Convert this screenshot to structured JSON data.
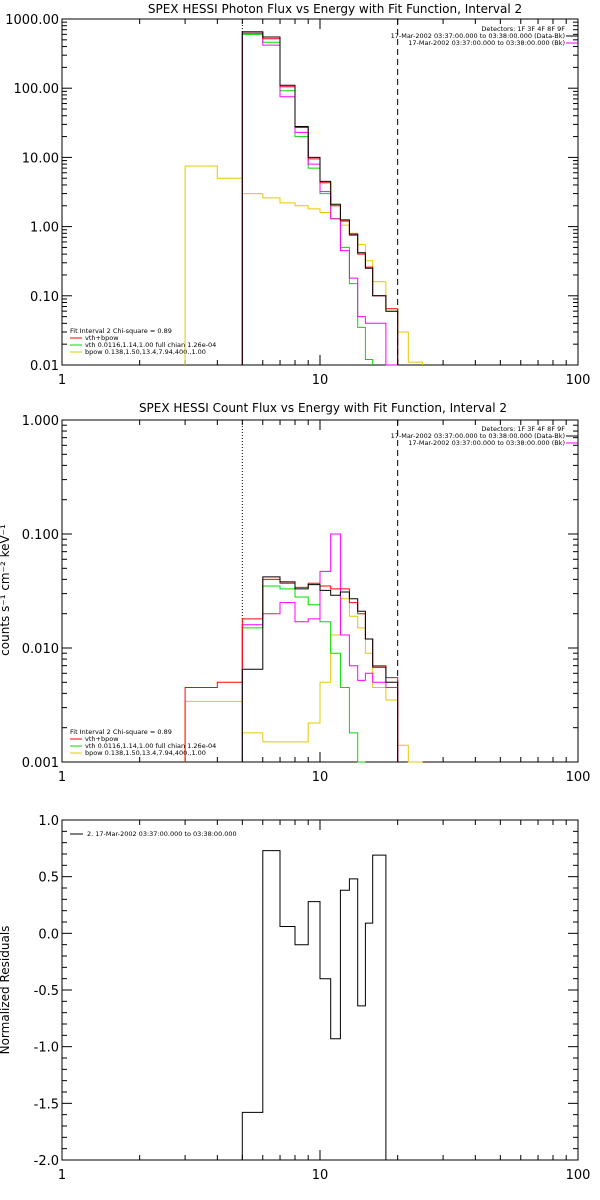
{
  "colors": {
    "data": "#000000",
    "total": "#ff0000",
    "vth": "#00dd00",
    "bpow": "#e6c800",
    "background": "#ff00ff",
    "frame": "#000000",
    "page": "#ffffff"
  },
  "chart_data": [
    {
      "type": "line",
      "title": "SPEX HESSI Photon Flux vs Energy with Fit Function, Interval 2",
      "xscale": "log",
      "yscale": "log",
      "xlim": [
        1,
        100
      ],
      "ylim": [
        0.01,
        1000
      ],
      "xticks": [
        "1",
        "10",
        "100"
      ],
      "yticks": [
        "1000.00",
        "100.00",
        "10.00",
        "1.00",
        "0.10",
        "0.01"
      ],
      "grid": false,
      "legend_top_right": {
        "line1": "Detectors: 1F 3F 4F 8F 9F",
        "line2": "17-Mar-2002 03:37:00.000 to 03:38:00.000 (Data-Bk)",
        "line3": "17-Mar-2002 03:37:00.000 to 03:38:00.000 (Bk)"
      },
      "legend_bottom_left": {
        "line1": "Fit Interval 2   Chi-square = 0.89",
        "line2": "vth+bpow",
        "line3": "vth 0.0116,1.14,1.00  full chian 1.26e-04",
        "line4": "bpow 0.138,1.50,13.4,7.94,400.,1.00"
      },
      "edges": [
        3,
        4,
        5,
        6,
        7,
        8,
        9,
        10,
        11,
        12,
        13,
        14,
        15,
        16,
        18,
        20,
        22,
        25
      ],
      "fit_range_lines": [
        5,
        20
      ],
      "dashed_line": 20,
      "series": [
        {
          "name": "Data-Bk",
          "color": "#000000",
          "values": [
            null,
            null,
            650,
            550,
            110,
            28,
            10,
            4.5,
            2.1,
            1.25,
            0.78,
            0.42,
            0.25,
            0.1,
            0.06,
            null,
            null
          ]
        },
        {
          "name": "vth+bpow",
          "color": "#ff0000",
          "values": [
            null,
            null,
            650,
            520,
            105,
            27,
            9.5,
            4.3,
            2.0,
            1.2,
            0.75,
            0.4,
            0.26,
            0.1,
            0.065,
            null,
            null
          ]
        },
        {
          "name": "vth",
          "color": "#00dd00",
          "values": [
            null,
            null,
            600,
            460,
            92,
            20,
            7,
            3,
            1.3,
            0.5,
            0.15,
            0.035,
            0.012,
            null,
            null,
            null,
            null
          ]
        },
        {
          "name": "bpow",
          "color": "#e6c800",
          "values": [
            7.5,
            5,
            3,
            2.6,
            2.2,
            2.0,
            1.8,
            1.6,
            1.3,
            1.05,
            0.8,
            0.55,
            0.32,
            0.16,
            0.06,
            0.03,
            0.011
          ]
        },
        {
          "name": "Bk",
          "color": "#ff00ff",
          "values": [
            null,
            null,
            620,
            420,
            75,
            23,
            8,
            3.2,
            1.3,
            0.45,
            0.18,
            0.05,
            0.04,
            0.04,
            0.01,
            null,
            null
          ]
        }
      ]
    },
    {
      "type": "line",
      "title": "SPEX HESSI Count Flux vs Energy with Fit Function, Interval 2",
      "ylabel": "counts s⁻¹ cm⁻² keV⁻¹",
      "xscale": "log",
      "yscale": "log",
      "xlim": [
        1,
        100
      ],
      "ylim": [
        0.001,
        1
      ],
      "xticks": [
        "1",
        "10",
        "100"
      ],
      "yticks": [
        "1.000",
        "0.100",
        "0.010",
        "0.001"
      ],
      "grid": false,
      "legend_top_right": {
        "line1": "Detectors: 1F 3F 4F 8F 9F",
        "line2": "17-Mar-2002 03:37:00.000 to 03:38:00.000 (Data-Bk)",
        "line3": "17-Mar-2002 03:37:00.000 to 03:38:00.000 (Bk)"
      },
      "legend_bottom_left": {
        "line1": "Fit Interval 2   Chi-square = 0.89",
        "line2": "vth+bpow",
        "line3": "vth 0.0116,1.14,1.00  full chian 1.26e-04",
        "line4": "bpow 0.138,1.50,13.4,7.94,400.,1.00"
      },
      "edges": [
        3,
        4,
        5,
        6,
        7,
        8,
        9,
        10,
        11,
        12,
        13,
        14,
        15,
        16,
        18,
        20,
        22,
        25
      ],
      "fit_range_lines": [
        5,
        20
      ],
      "dashed_line": 20,
      "series": [
        {
          "name": "Data-Bk",
          "color": "#000000",
          "values": [
            null,
            null,
            0.0065,
            0.042,
            0.038,
            0.033,
            0.036,
            0.032,
            0.029,
            0.031,
            0.027,
            0.021,
            0.012,
            0.0068,
            0.005,
            null,
            null
          ]
        },
        {
          "name": "vth+bpow",
          "color": "#ff0000",
          "values": [
            0.0045,
            0.005,
            0.018,
            0.04,
            0.037,
            0.034,
            0.037,
            0.035,
            0.033,
            0.033,
            0.025,
            0.02,
            0.012,
            0.007,
            0.0055,
            null,
            null
          ]
        },
        {
          "name": "vth",
          "color": "#00dd00",
          "values": [
            null,
            null,
            0.015,
            0.035,
            0.033,
            0.028,
            0.024,
            0.017,
            0.009,
            0.0045,
            0.0018,
            0.001,
            null,
            null,
            null,
            null,
            null
          ]
        },
        {
          "name": "bpow",
          "color": "#e6c800",
          "values": [
            0.0034,
            0.0034,
            0.0018,
            0.0015,
            0.0015,
            0.0015,
            0.0022,
            0.005,
            0.013,
            0.027,
            0.019,
            0.015,
            0.009,
            0.0045,
            0.0035,
            0.0014,
            0.001
          ]
        },
        {
          "name": "Bk",
          "color": "#ff00ff",
          "values": [
            null,
            null,
            0.016,
            0.02,
            0.025,
            0.017,
            0.018,
            0.047,
            0.1,
            0.013,
            0.007,
            0.0052,
            0.006,
            0.005,
            0.0045,
            null,
            null
          ]
        }
      ]
    },
    {
      "type": "line",
      "title": "",
      "ylabel": "Normalized Residuals",
      "xscale": "log",
      "yscale": "linear",
      "xlim": [
        1,
        100
      ],
      "ylim": [
        -2.0,
        1.0
      ],
      "xticks": [
        "1",
        "10",
        "100"
      ],
      "yticks": [
        "1.0",
        "0.5",
        "0.0",
        "-0.5",
        "-1.0",
        "-1.5",
        "-2.0"
      ],
      "grid": false,
      "legend": "2. 17-Mar-2002 03:37:00.000 to 03:38:00.000",
      "edges": [
        5,
        6,
        7,
        8,
        9,
        10,
        11,
        12,
        13,
        14,
        15,
        16,
        18,
        20
      ],
      "series": [
        {
          "name": "2. 17-Mar-2002 03:37:00.000 to 03:38:00.000",
          "color": "#000000",
          "values": [
            -1.58,
            0.73,
            0.06,
            -0.1,
            0.28,
            -0.4,
            -0.93,
            0.38,
            0.48,
            -0.64,
            0.09,
            0.69,
            -2.0
          ]
        }
      ]
    }
  ]
}
